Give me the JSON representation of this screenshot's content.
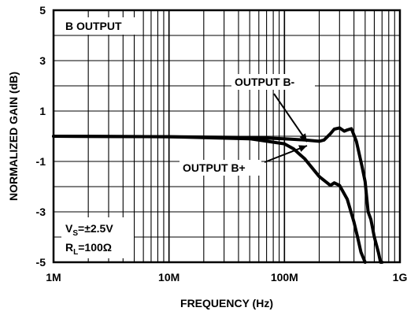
{
  "chart_data": {
    "type": "line",
    "x_scale": "log",
    "xlim_hz": [
      1000000,
      1000000000
    ],
    "ylim": [
      -5,
      5
    ],
    "grid": true,
    "xlabel": "FREQUENCY (Hz)",
    "ylabel": "NORMALIZED GAIN (dB)",
    "x_tick_labels": [
      "1M",
      "10M",
      "100M",
      "1G"
    ],
    "x_tick_values_hz": [
      1000000,
      10000000,
      100000000,
      1000000000
    ],
    "y_tick_values": [
      5,
      3,
      1,
      -1,
      -3,
      -5
    ],
    "y_tick_labels": [
      "5",
      "3",
      "1",
      "-1",
      "-3",
      "-5"
    ],
    "box_label": "B OUTPUT",
    "conditions": {
      "vs_main": "V",
      "vs_sub": "S",
      "vs_value": "=±2.5V",
      "rl_main": "R",
      "rl_sub": "L",
      "rl_value": "=100Ω"
    },
    "series": [
      {
        "name": "OUTPUT B-",
        "x": [
          1000000,
          10000000,
          50000000,
          100000000,
          150000000,
          200000000,
          220000000,
          250000000,
          270000000,
          300000000,
          330000000,
          350000000,
          380000000,
          420000000,
          470000000,
          500000000,
          530000000,
          560000000,
          600000000,
          650000000,
          680000000,
          700000000
        ],
        "y": [
          0.0,
          -0.02,
          -0.05,
          -0.1,
          -0.15,
          -0.2,
          -0.15,
          0.1,
          0.28,
          0.33,
          0.2,
          0.25,
          0.3,
          -0.2,
          -1.2,
          -1.8,
          -3.0,
          -3.3,
          -4.0,
          -4.6,
          -5.0,
          -5.0
        ]
      },
      {
        "name": "OUTPUT B+",
        "x": [
          1000000,
          10000000,
          50000000,
          100000000,
          120000000,
          150000000,
          200000000,
          250000000,
          270000000,
          300000000,
          350000000,
          400000000,
          430000000,
          460000000,
          500000000
        ],
        "y": [
          0.0,
          -0.02,
          -0.1,
          -0.3,
          -0.5,
          -0.9,
          -1.6,
          -1.95,
          -1.85,
          -1.95,
          -2.5,
          -3.4,
          -4.0,
          -4.6,
          -5.0
        ]
      }
    ],
    "annotations": [
      {
        "text": "OUTPUT B-",
        "arrow_to_series": 0
      },
      {
        "text": "OUTPUT B+",
        "arrow_to_series": 1
      }
    ]
  }
}
